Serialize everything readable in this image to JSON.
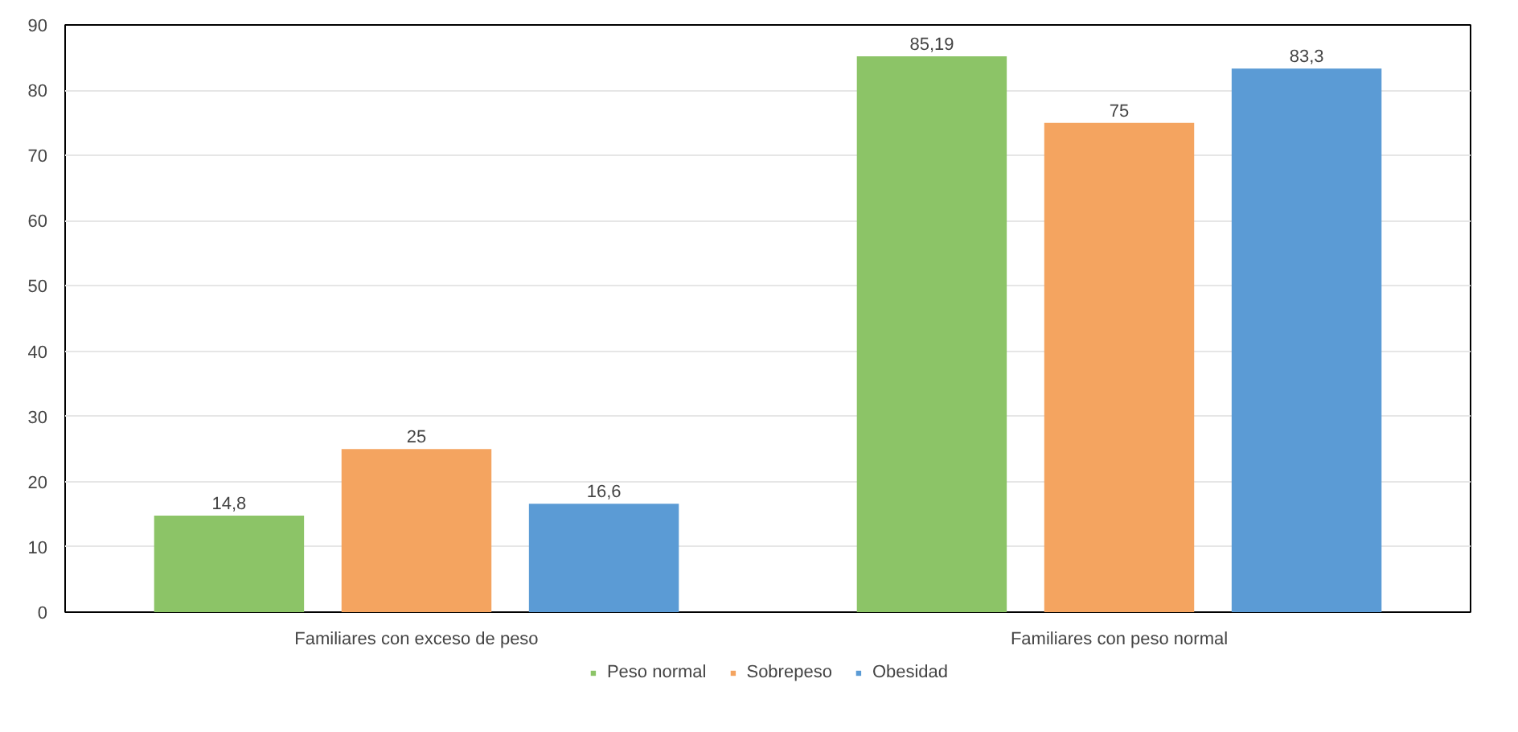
{
  "chart_data": {
    "type": "bar",
    "categories": [
      "Familiares con exceso de peso",
      "Familiares con peso normal"
    ],
    "series": [
      {
        "name": "Peso normal",
        "color": "#8cc467",
        "values": [
          14.8,
          85.19
        ],
        "value_labels": [
          "14,8",
          "85,19"
        ]
      },
      {
        "name": "Sobrepeso",
        "color": "#f4a460",
        "values": [
          25,
          75
        ],
        "value_labels": [
          "25",
          "75"
        ]
      },
      {
        "name": "Obesidad",
        "color": "#5b9bd5",
        "values": [
          16.6,
          83.3
        ],
        "value_labels": [
          "16,6",
          "83,3"
        ]
      }
    ],
    "ylim": [
      0,
      90
    ],
    "yticks": [
      0,
      10,
      20,
      30,
      40,
      50,
      60,
      70,
      80,
      90
    ],
    "grid": "y",
    "legend": "bottom"
  }
}
